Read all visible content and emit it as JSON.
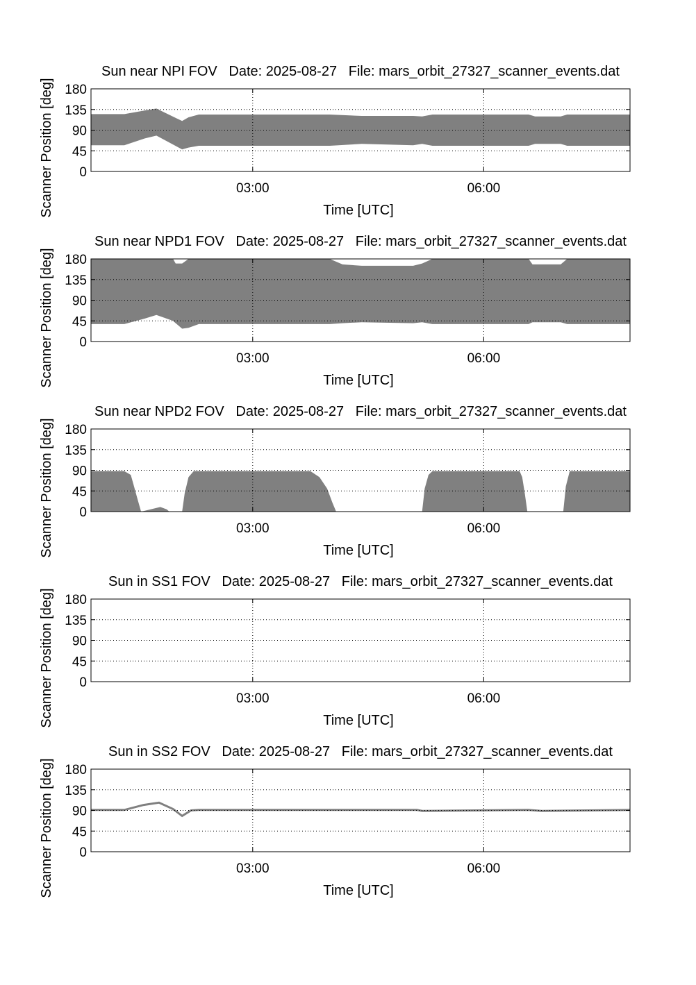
{
  "chart_data": [
    {
      "type": "area",
      "title": "Sun near NPI FOV   Date: 2025-08-27   File: mars_orbit_27327_scanner_events.dat",
      "xlabel": "Time [UTC]",
      "ylabel": "Scanner Position [deg]",
      "xlim": [
        "00:54",
        "07:54"
      ],
      "ylim": [
        0,
        180
      ],
      "x_ticks": [
        "03:00",
        "06:00"
      ],
      "y_ticks": [
        0,
        45,
        90,
        135,
        180
      ],
      "grid": true,
      "fill_color": "#808080",
      "x": [
        "00:54",
        "01:20",
        "01:36",
        "01:45",
        "02:05",
        "02:10",
        "02:18",
        "04:00",
        "04:25",
        "05:05",
        "05:12",
        "05:20",
        "06:35",
        "06:40",
        "07:00",
        "07:05",
        "07:54"
      ],
      "lower": [
        57,
        57,
        72,
        78,
        48,
        52,
        56,
        56,
        60,
        57,
        60,
        56,
        56,
        60,
        60,
        56,
        56
      ],
      "upper": [
        125,
        125,
        133,
        137,
        110,
        118,
        124,
        124,
        121,
        121,
        120,
        124,
        124,
        120,
        120,
        124,
        124
      ]
    },
    {
      "type": "area",
      "title": "Sun near NPD1 FOV   Date: 2025-08-27   File: mars_orbit_27327_scanner_events.dat",
      "xlabel": "Time [UTC]",
      "ylabel": "Scanner Position [deg]",
      "xlim": [
        "00:54",
        "07:54"
      ],
      "ylim": [
        0,
        180
      ],
      "x_ticks": [
        "03:00",
        "06:00"
      ],
      "y_ticks": [
        0,
        45,
        90,
        135,
        180
      ],
      "grid": true,
      "fill_color": "#808080",
      "x": [
        "00:54",
        "01:20",
        "01:36",
        "01:45",
        "01:58",
        "02:00",
        "02:05",
        "02:10",
        "02:18",
        "04:00",
        "04:10",
        "04:25",
        "05:05",
        "05:12",
        "05:20",
        "06:35",
        "06:38",
        "07:00",
        "07:05",
        "07:54"
      ],
      "lower": [
        38,
        38,
        50,
        58,
        45,
        40,
        28,
        30,
        38,
        38,
        40,
        42,
        40,
        42,
        38,
        38,
        42,
        42,
        38,
        38
      ],
      "upper": [
        180,
        180,
        180,
        180,
        180,
        170,
        170,
        180,
        180,
        180,
        168,
        165,
        165,
        170,
        180,
        180,
        168,
        168,
        180,
        180
      ]
    },
    {
      "type": "area",
      "title": "Sun near NPD2 FOV   Date: 2025-08-27   File: mars_orbit_27327_scanner_events.dat",
      "xlabel": "Time [UTC]",
      "ylabel": "Scanner Position [deg]",
      "xlim": [
        "00:54",
        "07:54"
      ],
      "ylim": [
        0,
        180
      ],
      "x_ticks": [
        "03:00",
        "06:00"
      ],
      "y_ticks": [
        0,
        45,
        90,
        135,
        180
      ],
      "grid": true,
      "fill_color": "#808080",
      "segments": [
        {
          "x": [
            "00:54",
            "01:20",
            "01:25",
            "01:27",
            "01:30",
            "01:33",
            "01:36",
            "01:48",
            "01:53",
            "01:55"
          ],
          "upper": [
            88,
            88,
            80,
            60,
            30,
            0,
            2,
            10,
            5,
            0
          ]
        },
        {
          "x": [
            "02:05",
            "02:07",
            "02:10",
            "02:14",
            "03:45",
            "03:52",
            "03:58",
            "04:02",
            "04:05"
          ],
          "upper": [
            0,
            40,
            75,
            88,
            88,
            75,
            50,
            20,
            0
          ]
        },
        {
          "x": [
            "05:12",
            "05:14",
            "05:17",
            "05:20",
            "06:28",
            "06:30",
            "06:32",
            "06:34"
          ],
          "upper": [
            0,
            50,
            80,
            88,
            88,
            75,
            40,
            0
          ]
        },
        {
          "x": [
            "07:02",
            "07:04",
            "07:07",
            "07:54"
          ],
          "upper": [
            0,
            55,
            88,
            88
          ]
        }
      ]
    },
    {
      "type": "area",
      "title": "Sun in SS1 FOV   Date: 2025-08-27   File: mars_orbit_27327_scanner_events.dat",
      "xlabel": "Time [UTC]",
      "ylabel": "Scanner Position [deg]",
      "xlim": [
        "00:54",
        "07:54"
      ],
      "ylim": [
        0,
        180
      ],
      "x_ticks": [
        "03:00",
        "06:00"
      ],
      "y_ticks": [
        0,
        45,
        90,
        135,
        180
      ],
      "grid": true
    },
    {
      "type": "line",
      "title": "Sun in SS2 FOV   Date: 2025-08-27   File: mars_orbit_27327_scanner_events.dat",
      "xlabel": "Time [UTC]",
      "ylabel": "Scanner Position [deg]",
      "xlim": [
        "00:54",
        "07:54"
      ],
      "ylim": [
        0,
        180
      ],
      "x_ticks": [
        "03:00",
        "06:00"
      ],
      "y_ticks": [
        0,
        45,
        90,
        135,
        180
      ],
      "grid": true,
      "line_color": "#808080",
      "x": [
        "00:54",
        "01:20",
        "01:35",
        "01:47",
        "01:58",
        "02:05",
        "02:12",
        "02:18",
        "05:08",
        "05:12",
        "06:35",
        "06:45",
        "07:54"
      ],
      "y": [
        91,
        91,
        102,
        107,
        93,
        78,
        90,
        91,
        91,
        89,
        91,
        89,
        91
      ]
    }
  ]
}
